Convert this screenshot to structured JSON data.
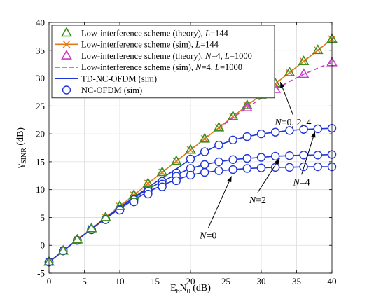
{
  "chart_data": {
    "type": "line",
    "xlabel": {
      "base": "E",
      "sub1": "b",
      "mid": "N",
      "sub2": "0",
      "unit": " (dB)"
    },
    "ylabel": {
      "base": "γ",
      "sub": "SINR",
      "unit": " (dB)"
    },
    "xlim": [
      0,
      40
    ],
    "ylim": [
      -5,
      40
    ],
    "xticks": [
      0,
      5,
      10,
      15,
      20,
      25,
      30,
      35,
      40
    ],
    "yticks": [
      -5,
      0,
      5,
      10,
      15,
      20,
      25,
      30,
      35,
      40
    ],
    "grid": true,
    "legend_position": "top-left",
    "legend": [
      {
        "parts": [
          [
            "Low-interference scheme (theory), ",
            "n"
          ],
          [
            "L",
            "i"
          ],
          [
            "=144",
            "n"
          ]
        ],
        "marker": "triangle",
        "color": "#3c8c1e",
        "line": "none"
      },
      {
        "parts": [
          [
            "Low-interference scheme (sim), ",
            "n"
          ],
          [
            "L",
            "i"
          ],
          [
            "=144",
            "n"
          ]
        ],
        "marker": "x",
        "color": "#e07b1a",
        "line": "solid"
      },
      {
        "parts": [
          [
            "Low-interference scheme (theory), ",
            "n"
          ],
          [
            "N",
            "i"
          ],
          [
            "=4, ",
            "n"
          ],
          [
            "L",
            "i"
          ],
          [
            "=1000",
            "n"
          ]
        ],
        "marker": "triangle",
        "color": "#c83cc8",
        "line": "none"
      },
      {
        "parts": [
          [
            "Low-interference scheme (sim), ",
            "n"
          ],
          [
            "N",
            "i"
          ],
          [
            "=4, ",
            "n"
          ],
          [
            "L",
            "i"
          ],
          [
            "=1000",
            "n"
          ]
        ],
        "marker": "none",
        "color": "#c83cc8",
        "line": "dashed"
      },
      {
        "parts": [
          [
            "TD-NC-OFDM (sim)",
            "n"
          ]
        ],
        "marker": "none",
        "color": "#1f35d6",
        "line": "solid"
      },
      {
        "parts": [
          [
            "NC-OFDM (sim)",
            "n"
          ]
        ],
        "marker": "circle",
        "color": "#1f35d6",
        "line": "none"
      }
    ],
    "x": [
      0,
      2,
      4,
      6,
      8,
      10,
      12,
      14,
      16,
      18,
      20,
      22,
      24,
      26,
      28,
      30,
      32,
      34,
      36,
      38,
      40
    ],
    "series": [
      {
        "name": "Low-interference scheme (theory), L=144",
        "marker": "triangle",
        "color": "#3c8c1e",
        "line": "none",
        "values": [
          -3.0,
          -1.0,
          1.0,
          3.0,
          5.0,
          7.0,
          9.0,
          11.1,
          13.1,
          15.1,
          17.1,
          19.1,
          21.1,
          23.1,
          25.1,
          27.0,
          29.0,
          31.0,
          33.0,
          35.0,
          37.0
        ]
      },
      {
        "name": "Low-interference scheme (sim), L=144",
        "marker": "x",
        "color": "#e07b1a",
        "line": "solid",
        "values": [
          -3.0,
          -1.0,
          1.0,
          3.0,
          5.0,
          7.0,
          9.0,
          11.1,
          13.1,
          15.1,
          17.1,
          19.1,
          21.1,
          23.1,
          25.1,
          27.0,
          29.0,
          31.0,
          33.0,
          35.0,
          37.0
        ]
      },
      {
        "name": "Low-interference scheme (theory), N=4, L=1000",
        "marker": "triangle",
        "color": "#c83cc8",
        "line": "none",
        "x": [
          28,
          32,
          36,
          40
        ],
        "values": [
          24.7,
          28.0,
          30.7,
          32.8
        ]
      },
      {
        "name": "Low-interference scheme (sim), N=4, L=1000",
        "marker": "none",
        "color": "#c83cc8",
        "line": "dashed",
        "x": [
          24,
          26,
          28,
          30,
          32,
          34,
          36,
          38,
          40
        ],
        "values": [
          21.0,
          22.9,
          24.7,
          26.4,
          28.0,
          29.4,
          30.7,
          31.8,
          32.8
        ]
      },
      {
        "name": "TD-NC-OFDM (sim), N=4",
        "marker": "none",
        "color": "#1f35d6",
        "line": "solid",
        "values": [
          -3.0,
          -1.0,
          1.0,
          2.9,
          4.9,
          6.8,
          8.6,
          10.4,
          12.1,
          13.7,
          15.5,
          16.8,
          18.0,
          18.9,
          19.5,
          20.0,
          20.3,
          20.6,
          20.8,
          20.9,
          21.0
        ]
      },
      {
        "name": "NC-OFDM (sim), N=4",
        "marker": "circle",
        "color": "#1f35d6",
        "line": "none",
        "values": [
          -3.0,
          -1.0,
          0.9,
          2.8,
          4.7,
          6.5,
          8.2,
          10.0,
          11.5,
          13.0,
          15.5,
          16.8,
          18.0,
          18.9,
          19.5,
          20.0,
          20.3,
          20.6,
          20.8,
          20.9,
          21.0
        ]
      },
      {
        "name": "TD-NC-OFDM (sim), N=2",
        "marker": "none",
        "color": "#1f35d6",
        "line": "solid",
        "values": [
          -3.0,
          -1.0,
          1.0,
          2.9,
          4.9,
          6.8,
          8.5,
          10.1,
          11.5,
          12.7,
          13.8,
          14.5,
          15.0,
          15.4,
          15.6,
          15.8,
          16.0,
          16.1,
          16.2,
          16.2,
          16.3
        ]
      },
      {
        "name": "NC-OFDM (sim), N=2",
        "marker": "circle",
        "color": "#1f35d6",
        "line": "none",
        "values": [
          -3.0,
          -1.0,
          0.9,
          2.8,
          4.7,
          6.5,
          8.2,
          9.7,
          11.0,
          12.4,
          13.8,
          14.5,
          15.0,
          15.4,
          15.6,
          15.8,
          16.0,
          16.1,
          16.2,
          16.2,
          16.3
        ]
      },
      {
        "name": "TD-NC-OFDM (sim), N=0",
        "marker": "none",
        "color": "#1f35d6",
        "line": "solid",
        "values": [
          -3.0,
          -1.0,
          1.0,
          2.9,
          4.8,
          6.6,
          8.2,
          9.6,
          10.8,
          11.8,
          12.6,
          13.1,
          13.4,
          13.6,
          13.8,
          13.9,
          14.0,
          14.0,
          14.1,
          14.1,
          14.1
        ]
      },
      {
        "name": "NC-OFDM (sim), N=0",
        "marker": "circle",
        "color": "#1f35d6",
        "line": "none",
        "values": [
          -3.0,
          -1.0,
          0.9,
          2.8,
          4.6,
          6.3,
          7.8,
          9.2,
          10.5,
          11.6,
          12.6,
          13.1,
          13.4,
          13.6,
          13.8,
          13.9,
          14.0,
          14.0,
          14.1,
          14.1,
          14.1
        ]
      }
    ],
    "annotations": [
      {
        "parts": [
          [
            "N",
            "i"
          ],
          [
            "=0, 2, 4",
            "n"
          ]
        ],
        "text_at": [
          34.5,
          21.5
        ],
        "arrow_to": [
          32.7,
          29.3
        ]
      },
      {
        "parts": [
          [
            "N",
            "i"
          ],
          [
            "=4",
            "n"
          ]
        ],
        "text_at": [
          35.7,
          10.8
        ],
        "arrow_to": [
          37.6,
          20.4
        ]
      },
      {
        "parts": [
          [
            "N",
            "i"
          ],
          [
            "=2",
            "n"
          ]
        ],
        "text_at": [
          29.5,
          7.6
        ],
        "arrow_to": [
          32.6,
          15.6
        ]
      },
      {
        "parts": [
          [
            "N",
            "i"
          ],
          [
            "=0",
            "n"
          ]
        ],
        "text_at": [
          22.5,
          1.2
        ],
        "arrow_to": [
          25.8,
          12.4
        ]
      }
    ]
  }
}
